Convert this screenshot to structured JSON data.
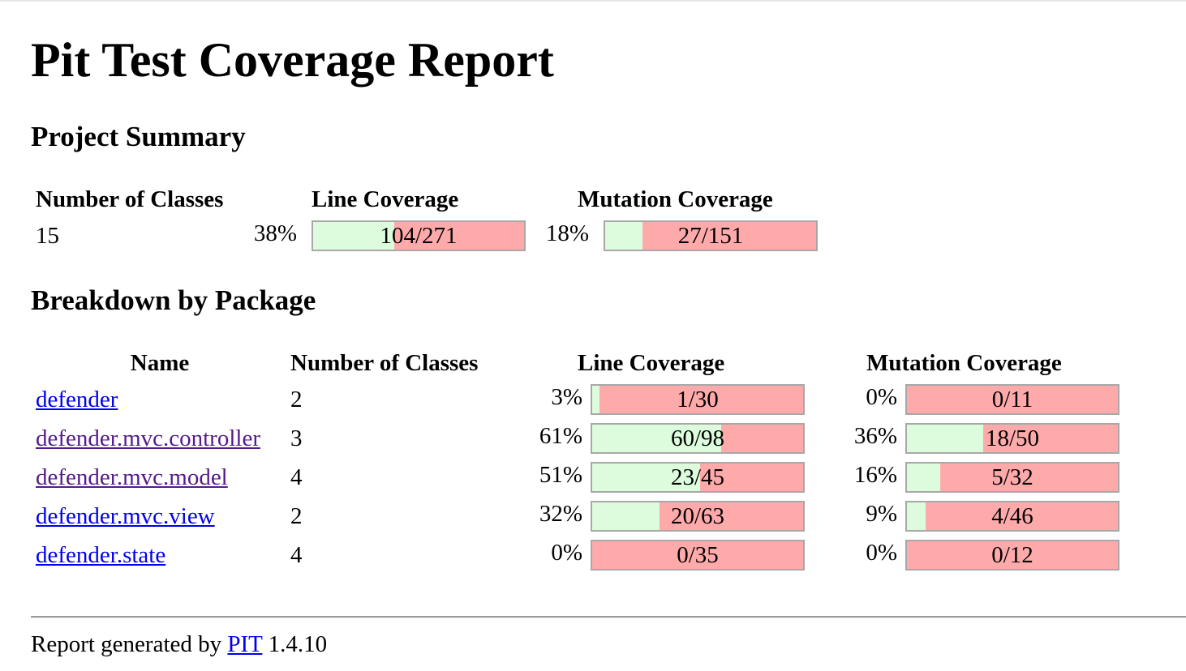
{
  "title": "Pit Test Coverage Report",
  "project_summary": {
    "heading": "Project Summary",
    "headers": {
      "classes": "Number of Classes",
      "line": "Line Coverage",
      "mutation": "Mutation Coverage"
    },
    "classes": "15",
    "line": {
      "percent": "38%",
      "legend": "104/271",
      "covered": 104,
      "total": 271
    },
    "mutation": {
      "percent": "18%",
      "legend": "27/151",
      "covered": 27,
      "total": 151
    }
  },
  "breakdown": {
    "heading": "Breakdown by Package",
    "headers": {
      "name": "Name",
      "classes": "Number of Classes",
      "line": "Line Coverage",
      "mutation": "Mutation Coverage"
    },
    "packages": [
      {
        "name": "defender",
        "classes": "2",
        "visited": false,
        "line": {
          "percent": "3%",
          "legend": "1/30",
          "covered": 1,
          "total": 30
        },
        "mutation": {
          "percent": "0%",
          "legend": "0/11",
          "covered": 0,
          "total": 11
        }
      },
      {
        "name": "defender.mvc.controller",
        "classes": "3",
        "visited": true,
        "line": {
          "percent": "61%",
          "legend": "60/98",
          "covered": 60,
          "total": 98
        },
        "mutation": {
          "percent": "36%",
          "legend": "18/50",
          "covered": 18,
          "total": 50
        }
      },
      {
        "name": "defender.mvc.model",
        "classes": "4",
        "visited": true,
        "line": {
          "percent": "51%",
          "legend": "23/45",
          "covered": 23,
          "total": 45
        },
        "mutation": {
          "percent": "16%",
          "legend": "5/32",
          "covered": 5,
          "total": 32
        }
      },
      {
        "name": "defender.mvc.view",
        "classes": "2",
        "visited": false,
        "line": {
          "percent": "32%",
          "legend": "20/63",
          "covered": 20,
          "total": 63
        },
        "mutation": {
          "percent": "9%",
          "legend": "4/46",
          "covered": 4,
          "total": 46
        }
      },
      {
        "name": "defender.state",
        "classes": "4",
        "visited": false,
        "line": {
          "percent": "0%",
          "legend": "0/35",
          "covered": 0,
          "total": 35
        },
        "mutation": {
          "percent": "0%",
          "legend": "0/12",
          "covered": 0,
          "total": 12
        }
      }
    ]
  },
  "footer": {
    "prefix": "Report generated by",
    "link": "PIT",
    "version": "1.4.10"
  },
  "colors": {
    "covered": "#ddfcdd",
    "uncovered": "#ffaaaa",
    "bar_border": "#a8a8a8",
    "link": "#0000ee",
    "visited_link": "#551a8b"
  }
}
